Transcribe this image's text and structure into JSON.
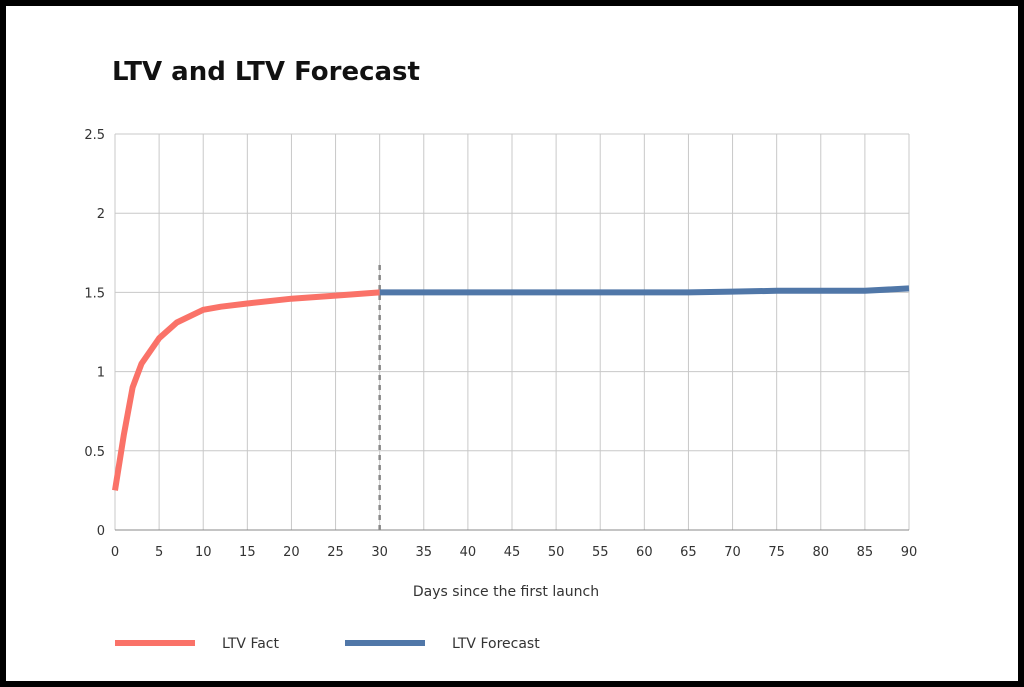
{
  "chart_data": {
    "type": "line",
    "title": "LTV and LTV Forecast",
    "xlabel": "Days since the first launch",
    "ylabel": "",
    "xlim": [
      0,
      90
    ],
    "ylim": [
      0,
      2.5
    ],
    "x_ticks": [
      "0",
      "5",
      "10",
      "15",
      "20",
      "25",
      "30",
      "35",
      "40",
      "45",
      "50",
      "55",
      "60",
      "65",
      "70",
      "75",
      "80",
      "85",
      "90"
    ],
    "y_ticks": [
      "0",
      "0.5",
      "1",
      "1.5",
      "2",
      "2.5"
    ],
    "grid": true,
    "legend_position": "bottom-left",
    "divider_x": 30,
    "series": [
      {
        "name": "LTV Fact",
        "color": "#fa7268",
        "x": [
          0,
          1,
          2,
          3,
          5,
          7,
          10,
          12,
          15,
          20,
          25,
          30
        ],
        "y": [
          0.25,
          0.6,
          0.9,
          1.05,
          1.21,
          1.31,
          1.39,
          1.41,
          1.43,
          1.46,
          1.48,
          1.5
        ]
      },
      {
        "name": "LTV Forecast",
        "color": "#5077a8",
        "x": [
          30,
          35,
          40,
          45,
          50,
          55,
          60,
          65,
          70,
          75,
          80,
          85,
          90
        ],
        "y": [
          1.5,
          1.5,
          1.5,
          1.5,
          1.5,
          1.5,
          1.5,
          1.5,
          1.505,
          1.51,
          1.51,
          1.51,
          1.525
        ]
      }
    ]
  }
}
